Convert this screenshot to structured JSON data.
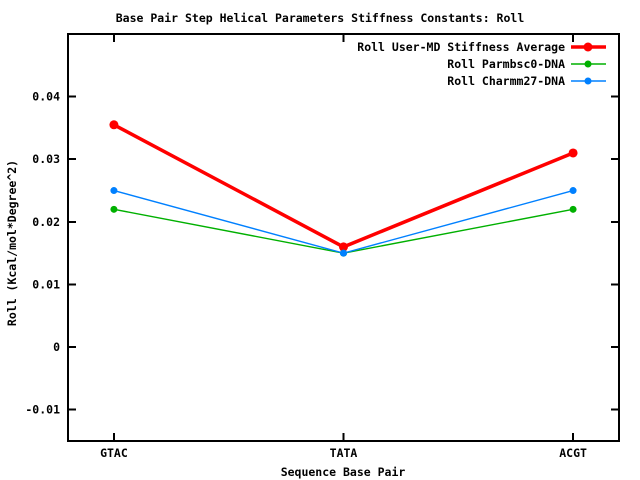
{
  "chart_data": {
    "type": "line",
    "title": "Base Pair Step Helical Parameters Stiffness Constants: Roll",
    "xlabel": "Sequence Base Pair",
    "ylabel": "Roll (Kcal/mol*Degree^2)",
    "categories": [
      "GTAC",
      "TATA",
      "ACGT"
    ],
    "series": [
      {
        "name": "Roll User-MD Stiffness Average",
        "color": "#ff0000",
        "line_width": 3.5,
        "marker_radius": 4.5,
        "values": [
          0.0355,
          0.016,
          0.031
        ]
      },
      {
        "name": "Roll Parmbsc0-DNA",
        "color": "#00b000",
        "line_width": 1.4,
        "marker_radius": 3.5,
        "values": [
          0.022,
          0.015,
          0.022
        ]
      },
      {
        "name": "Roll Charmm27-DNA",
        "color": "#0080ff",
        "line_width": 1.4,
        "marker_radius": 3.5,
        "values": [
          0.025,
          0.015,
          0.025
        ]
      }
    ],
    "y_ticks": [
      0.04,
      0.03,
      0.02,
      0.01,
      0,
      -0.01
    ],
    "y_tick_labels": [
      "0.04",
      "0.03",
      "0.02",
      "0.01",
      "0",
      "-0.01"
    ],
    "ylim": [
      -0.015,
      0.05
    ],
    "xlim": [
      -0.2,
      2.2
    ],
    "grid": false,
    "legend_position": "top-right",
    "marker_style": "filled-circle",
    "axis_color": "#000000",
    "background_color": "#ffffff"
  }
}
